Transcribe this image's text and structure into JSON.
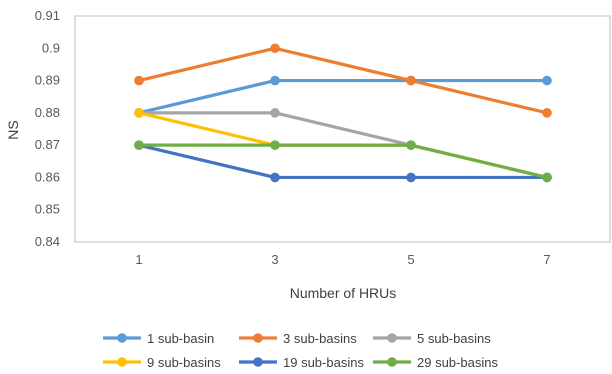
{
  "chart_data": {
    "type": "line",
    "title": "",
    "xlabel": "Number of HRUs",
    "ylabel": "NS",
    "categories": [
      "1",
      "3",
      "5",
      "7"
    ],
    "ylim": [
      0.84,
      0.91
    ],
    "yticks": [
      "0.84",
      "0.85",
      "0.86",
      "0.87",
      "0.88",
      "0.89",
      "0.9",
      "0.91"
    ],
    "grid": false,
    "legend_position": "bottom",
    "series": [
      {
        "name": "1 sub-basin",
        "color": "#5B9BD5",
        "values": [
          0.88,
          0.89,
          0.89,
          0.89
        ]
      },
      {
        "name": "3 sub-basins",
        "color": "#ED7D31",
        "values": [
          0.89,
          0.9,
          0.89,
          0.88
        ]
      },
      {
        "name": "5 sub-basins",
        "color": "#A5A5A5",
        "values": [
          0.88,
          0.88,
          0.87,
          0.86
        ]
      },
      {
        "name": "9 sub-basins",
        "color": "#FFC000",
        "values": [
          0.88,
          0.87,
          0.87,
          0.86
        ]
      },
      {
        "name": "19 sub-basins",
        "color": "#4472C4",
        "values": [
          0.87,
          0.86,
          0.86,
          0.86
        ]
      },
      {
        "name": "29 sub-basins",
        "color": "#70AD47",
        "values": [
          0.87,
          0.87,
          0.87,
          0.86
        ]
      }
    ]
  }
}
